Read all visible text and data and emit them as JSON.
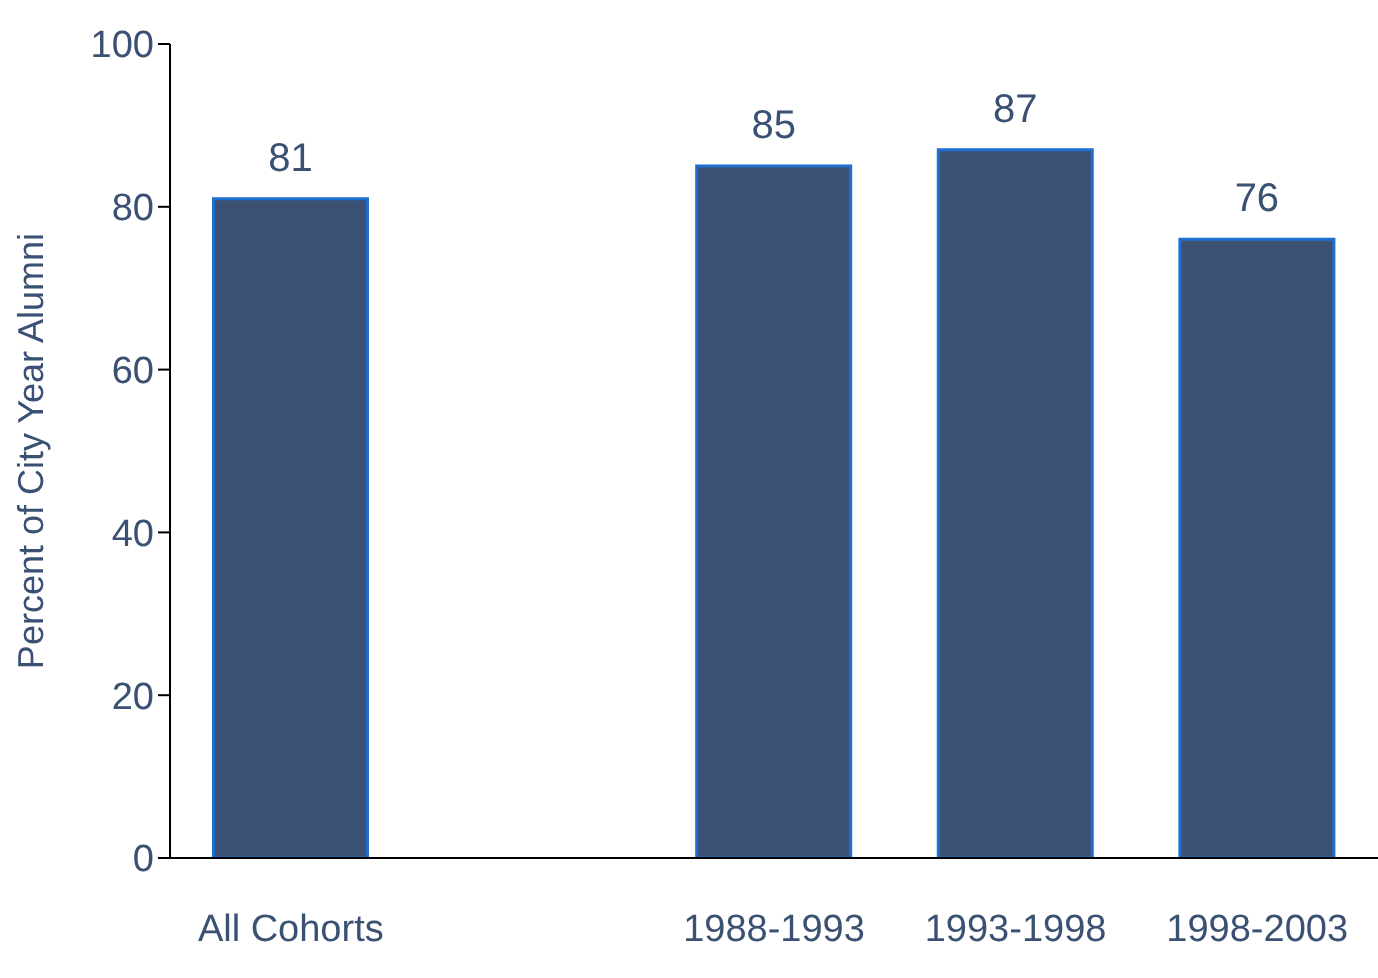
{
  "chart_data": {
    "type": "bar",
    "ylabel": "Percent of City Year Alumni",
    "categories": [
      "All Cohorts",
      null,
      "1988-1993",
      "1993-1998",
      "1998-2003"
    ],
    "values": [
      81,
      null,
      85,
      87,
      76
    ],
    "color": "#3b5173",
    "ylim": [
      0,
      100
    ],
    "yticks": [
      0,
      20,
      40,
      60,
      80,
      100
    ],
    "data_labels": true,
    "legend": false
  }
}
